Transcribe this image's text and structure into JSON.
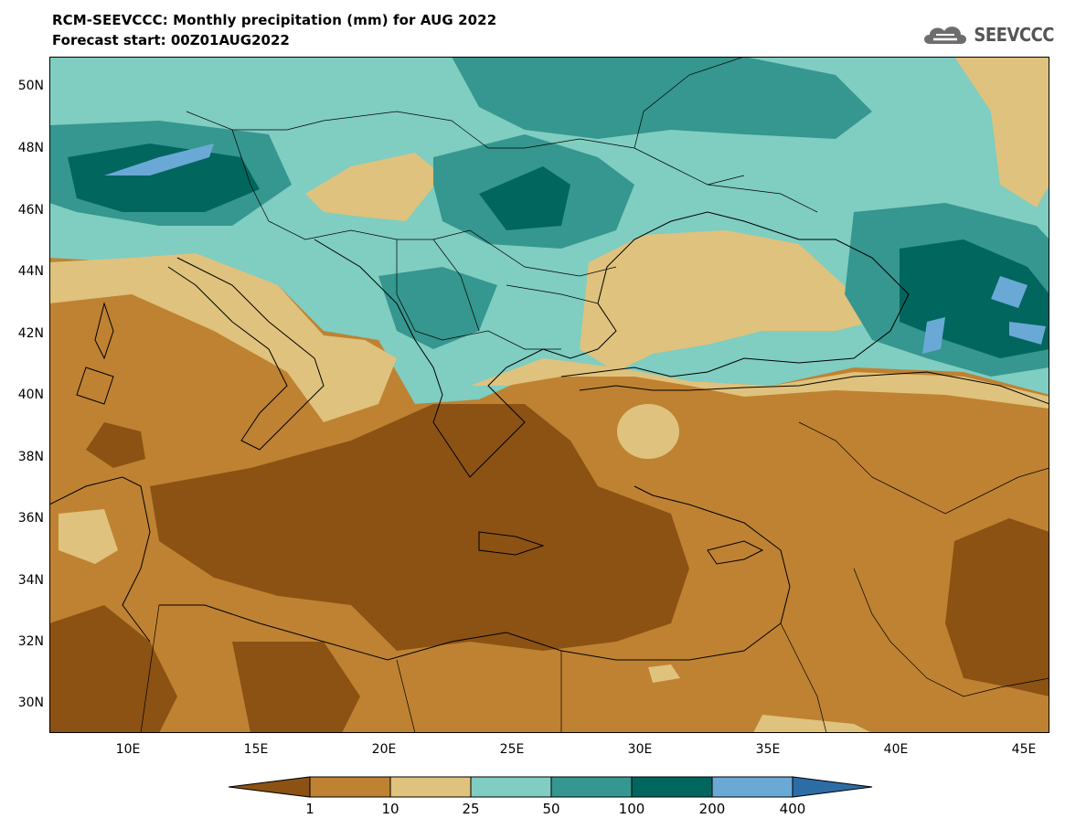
{
  "title": "RCM-SEEVCCC: Monthly precipitation (mm) for AUG 2022",
  "subtitle": "Forecast start: 00Z01AUG2022",
  "logo_text": "SEEVCCC",
  "lat_labels": [
    "50N",
    "48N",
    "46N",
    "44N",
    "42N",
    "40N",
    "38N",
    "36N",
    "34N",
    "32N",
    "30N"
  ],
  "lon_labels": [
    "10E",
    "15E",
    "20E",
    "25E",
    "30E",
    "35E",
    "40E",
    "45E"
  ],
  "colorbar": {
    "labels": [
      "1",
      "10",
      "25",
      "50",
      "100",
      "200",
      "400"
    ],
    "colors": [
      "#8b5213",
      "#bf8232",
      "#dfc27d",
      "#80cdc1",
      "#35978f",
      "#01665e",
      "#6aa9d6",
      "#2c6da6"
    ]
  }
}
